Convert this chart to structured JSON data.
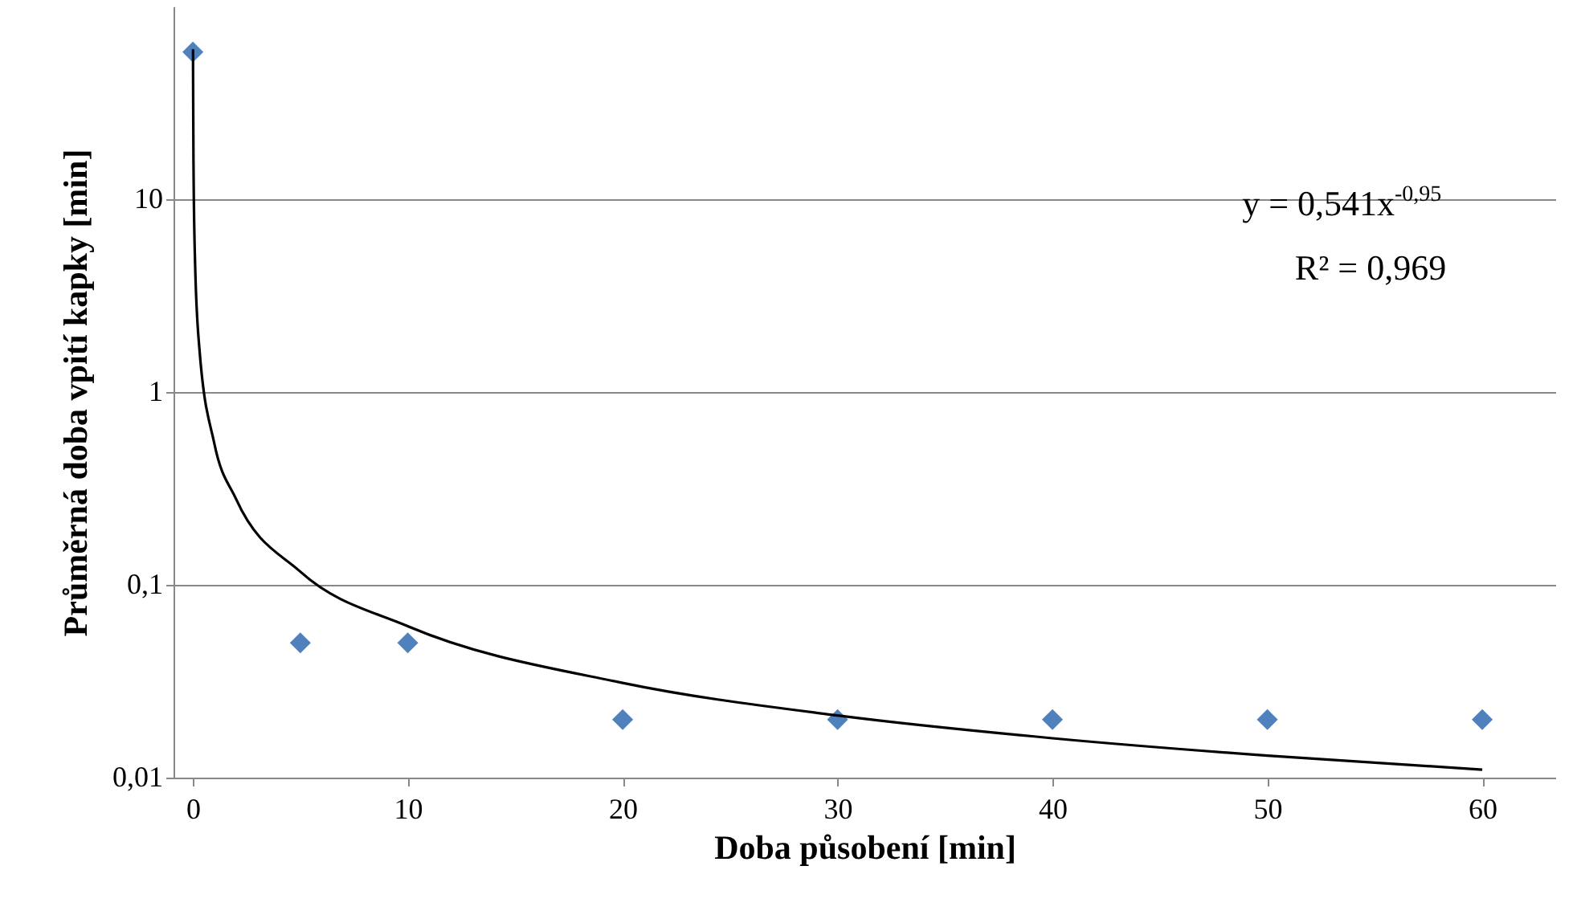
{
  "chart_data": {
    "type": "scatter",
    "xlabel": "Doba působení [min]",
    "ylabel": "Průměrná doba vpití kapky [min]",
    "x": [
      0,
      5,
      10,
      20,
      30,
      40,
      50,
      60
    ],
    "series": [
      {
        "color": "#4f81bd",
        "marker": "diamond",
        "values": [
          58,
          0.05,
          0.05,
          0.02,
          0.02,
          0.02,
          0.02,
          0.02
        ]
      },
      {
        "type": "line",
        "color": "#000000",
        "marker": "none",
        "x": [
          0.007,
          0.01,
          0.03,
          0.1,
          0.3,
          1,
          2,
          5,
          10,
          20,
          30,
          40,
          50,
          60
        ],
        "values": [
          60,
          43,
          15,
          4.8,
          1.7,
          0.54,
          0.28,
          0.117,
          0.061,
          0.031,
          0.021,
          0.016,
          0.013,
          0.011
        ]
      }
    ],
    "annotations": [
      "y = 0,541x$^{-0,95}$",
      "R² = 0,969"
    ],
    "log": "y",
    "grid": "y",
    "xlim": [
      -0.9,
      63.4
    ],
    "xticks": [
      0,
      10,
      20,
      30,
      40,
      50,
      60
    ],
    "ylim": [
      0.01,
      100
    ],
    "yticks": [
      {
        "value": 0.01,
        "label": "0,01"
      },
      {
        "value": 0.1,
        "label": "0,1"
      },
      1,
      10
    ]
  }
}
